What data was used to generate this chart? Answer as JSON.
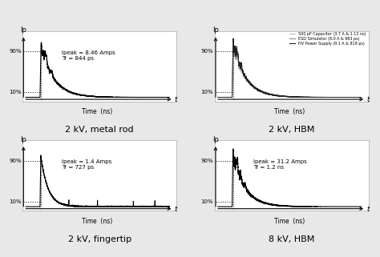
{
  "title_top_left": "2 kV, metal rod",
  "title_top_right": "2 kV, HBM",
  "title_bot_left": "2 kV, fingertip",
  "title_bot_right": "8 kV, HBM",
  "annotation_tl": "Ipeak = 8.46 Amps\nTr = 844 ps",
  "annotation_bl": "Ipeak = 1.4 Amps\nTr = 727 ps",
  "annotation_br": "Ipeak = 31.2 Amps\nTr = 1.2 ns",
  "legend_tr": [
    "500 pF Capacitor (3.7 A & 1.12 ns)",
    "ESD Simulator (8.0 A & 983 ps)",
    "HV Power Supply (9.1 A & 818 ps)"
  ],
  "legend_colors": [
    "#bbbbbb",
    "#888888",
    "#222222"
  ],
  "bg_color": "#e8e8e8",
  "panel_bg": "#ffffff",
  "xlabel": "Time  (ns)",
  "ylabel_ip": "Ip",
  "tick_90": "90%",
  "tick_10": "10%"
}
